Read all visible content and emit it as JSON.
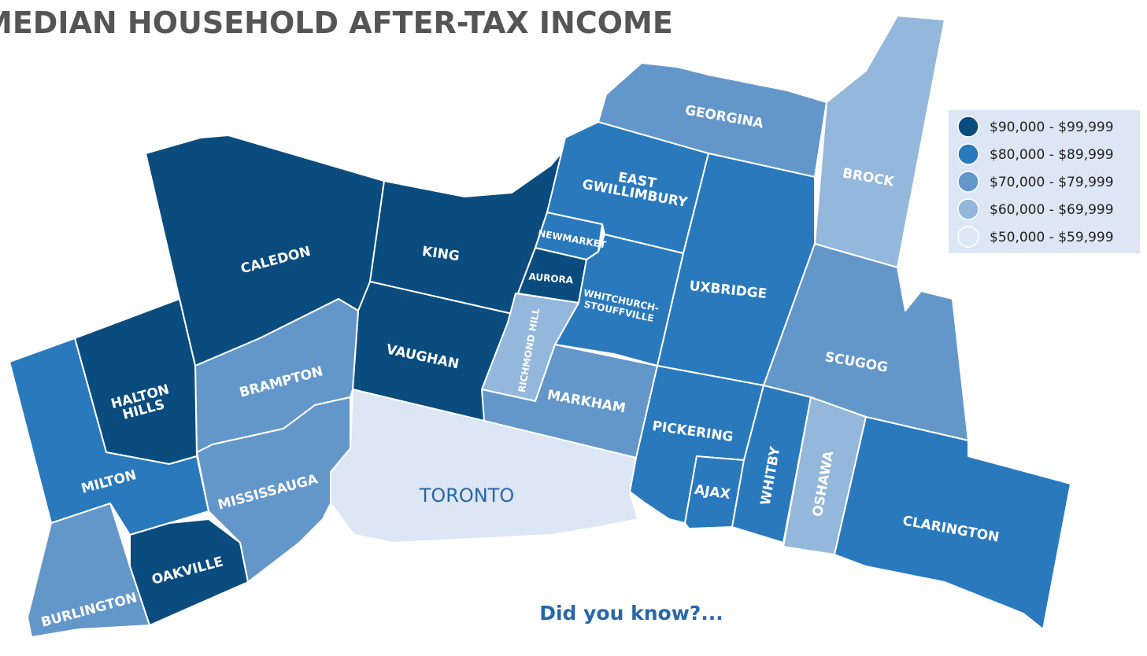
{
  "title": "MEDIAN HOUSEHOLD AFTER-TAX INCOME",
  "legend": [
    {
      "label": "$90,000 - $99,999",
      "color": "#0b4c7f"
    },
    {
      "label": "$80,000 - $89,999",
      "color": "#2a79bd"
    },
    {
      "label": "$70,000 - $79,999",
      "color": "#6497c9"
    },
    {
      "label": "$60,000 - $69,999",
      "color": "#94b7dc"
    },
    {
      "label": "$50,000 - $59,999",
      "color": "#dce6f4"
    }
  ],
  "regions": [
    {
      "label": [
        "CALEDON"
      ],
      "color": "#0b4c7f"
    },
    {
      "label": [
        "KING"
      ],
      "color": "#0b4c7f"
    },
    {
      "label": [
        "VAUGHAN"
      ],
      "color": "#0b4c7f"
    },
    {
      "label": [
        "AURORA"
      ],
      "color": "#0b4c7f"
    },
    {
      "label": [
        "NEWMARKET"
      ],
      "color": "#2a79bd"
    },
    {
      "label": [
        "EAST",
        "GWILLIMBURY"
      ],
      "color": "#2a79bd"
    },
    {
      "label": [
        "WHITCHURCH-",
        "STOUFFVILLE"
      ],
      "color": "#2a79bd"
    },
    {
      "label": [
        "RICHMOND HILL"
      ],
      "color": "#94b7dc"
    },
    {
      "label": [
        "MARKHAM"
      ],
      "color": "#6497c9"
    },
    {
      "label": [
        "GEORGINA"
      ],
      "color": "#6497c9"
    },
    {
      "label": [
        "BROCK"
      ],
      "color": "#94b7dc"
    },
    {
      "label": [
        "UXBRIDGE"
      ],
      "color": "#2a79bd"
    },
    {
      "label": [
        "SCUGOG"
      ],
      "color": "#6497c9"
    },
    {
      "label": [
        "PICKERING"
      ],
      "color": "#2a79bd"
    },
    {
      "label": [
        "AJAX"
      ],
      "color": "#2a79bd"
    },
    {
      "label": [
        "WHITBY"
      ],
      "color": "#2a79bd"
    },
    {
      "label": [
        "OSHAWA"
      ],
      "color": "#94b7dc"
    },
    {
      "label": [
        "CLARINGTON"
      ],
      "color": "#2a79bd"
    },
    {
      "label": [
        "TORONTO"
      ],
      "color": "#dce6f4"
    },
    {
      "label": [
        "BRAMPTON"
      ],
      "color": "#6497c9"
    },
    {
      "label": [
        "MISSISSAUGA"
      ],
      "color": "#6497c9"
    },
    {
      "label": [
        "HALTON",
        "HILLS"
      ],
      "color": "#0b4c7f"
    },
    {
      "label": [
        "MILTON"
      ],
      "color": "#2a79bd"
    },
    {
      "label": [
        "OAKVILLE"
      ],
      "color": "#0b4c7f"
    },
    {
      "label": [
        "BURLINGTON"
      ],
      "color": "#6497c9"
    }
  ],
  "callout": "Did you know?..."
}
